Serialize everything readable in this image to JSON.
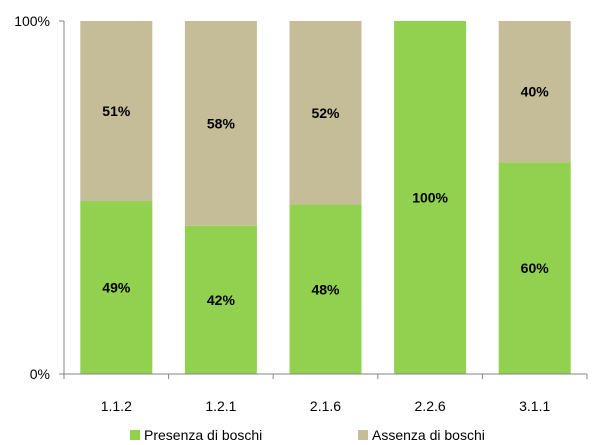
{
  "chart_data": {
    "type": "bar",
    "stacked": true,
    "categories": [
      "1.1.2",
      "1.2.1",
      "2.1.6",
      "2.2.6",
      "3.1.1"
    ],
    "series": [
      {
        "name": "Presenza di boschi",
        "color": "#92d050",
        "values": [
          49,
          42,
          48,
          100,
          60
        ],
        "labels": [
          "49%",
          "42%",
          "48%",
          "100%",
          "60%"
        ]
      },
      {
        "name": "Assenza di boschi",
        "color": "#c4bd97",
        "values": [
          51,
          58,
          52,
          0,
          40
        ],
        "labels": [
          "51%",
          "58%",
          "52%",
          "",
          "40%"
        ]
      }
    ],
    "ylim": [
      0,
      100
    ],
    "yticks": [
      "0%",
      "100%"
    ],
    "title": "",
    "xlabel": "",
    "ylabel": "",
    "legend": "bottom"
  }
}
